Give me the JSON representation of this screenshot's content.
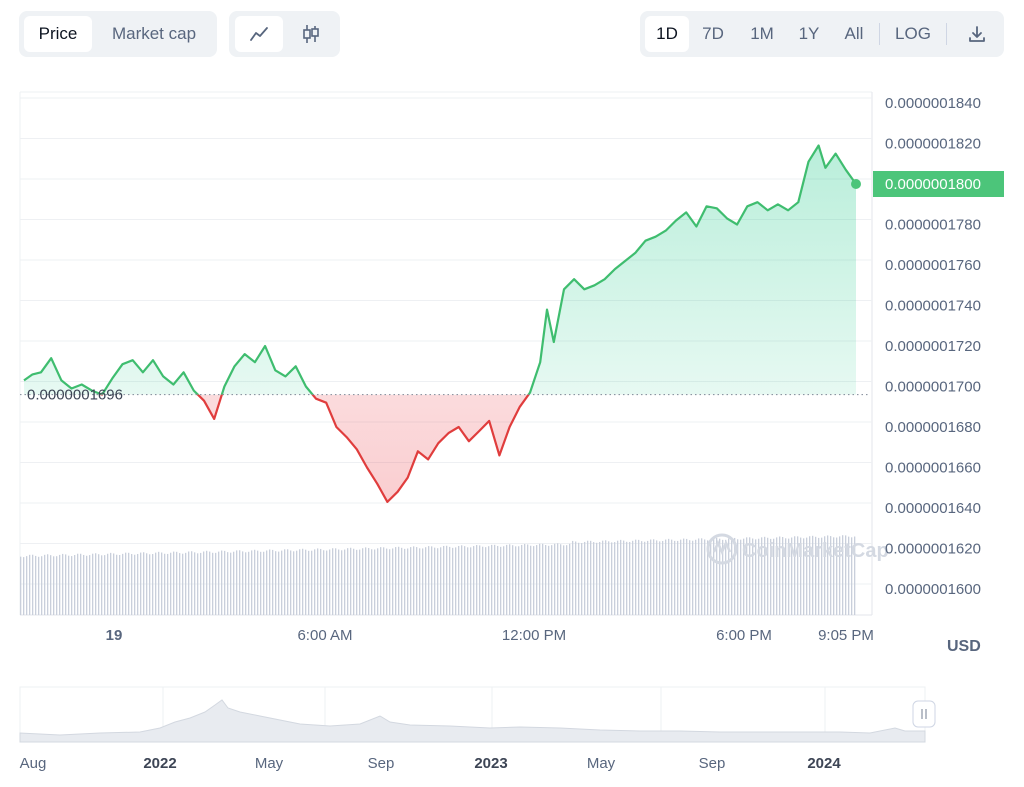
{
  "toolbar": {
    "metric_tabs": [
      {
        "label": "Price",
        "active": true
      },
      {
        "label": "Market cap",
        "active": false
      }
    ],
    "chart_types": [
      {
        "icon": "line-chart-icon",
        "active": true
      },
      {
        "icon": "candlestick-chart-icon",
        "active": false
      }
    ],
    "ranges": [
      {
        "label": "1D",
        "active": true
      },
      {
        "label": "7D",
        "active": false
      },
      {
        "label": "1M",
        "active": false
      },
      {
        "label": "1Y",
        "active": false
      },
      {
        "label": "All",
        "active": false
      }
    ],
    "log_label": "LOG",
    "download_icon": "download-icon"
  },
  "currency_label": "USD",
  "watermark": "CoinMarketCap",
  "colors": {
    "up": "#16c784",
    "down": "#ea3943",
    "line_up": "#3fbd6f",
    "line_down": "#e03d3d",
    "current_badge": "#4cc57a"
  },
  "chart_data": {
    "type": "line",
    "y_ticks": [
      "0.0000001840",
      "0.0000001820",
      "0.0000001800",
      "0.0000001780",
      "0.0000001760",
      "0.0000001740",
      "0.0000001720",
      "0.0000001700",
      "0.0000001680",
      "0.0000001660",
      "0.0000001640",
      "0.0000001620",
      "0.0000001600"
    ],
    "ylim": [
      1.59e-07,
      1.845e-07
    ],
    "x_ticks": [
      "19",
      "6:00 AM",
      "12:00 PM",
      "6:00 PM",
      "9:05 PM"
    ],
    "reference_price": 1.696e-07,
    "reference_label": "0.0000001696",
    "current_price_label": "0.0000001800",
    "price_points": [
      [
        0,
        1.703
      ],
      [
        0.5,
        1.706
      ],
      [
        1,
        1.707
      ],
      [
        1.6,
        1.714
      ],
      [
        2.2,
        1.703
      ],
      [
        2.8,
        1.699
      ],
      [
        3.4,
        1.701
      ],
      [
        4,
        1.698
      ],
      [
        4.6,
        1.696
      ],
      [
        5.2,
        1.704
      ],
      [
        5.8,
        1.711
      ],
      [
        6.4,
        1.713
      ],
      [
        7,
        1.707
      ],
      [
        7.6,
        1.713
      ],
      [
        8.2,
        1.705
      ],
      [
        8.8,
        1.701
      ],
      [
        9.4,
        1.707
      ],
      [
        10,
        1.698
      ],
      [
        10.6,
        1.693
      ],
      [
        11.2,
        1.684
      ],
      [
        11.8,
        1.7
      ],
      [
        12.4,
        1.71
      ],
      [
        13,
        1.716
      ],
      [
        13.6,
        1.712
      ],
      [
        14.2,
        1.72
      ],
      [
        14.8,
        1.708
      ],
      [
        15.4,
        1.705
      ],
      [
        16,
        1.71
      ],
      [
        16.6,
        1.7
      ],
      [
        17.2,
        1.694
      ],
      [
        17.8,
        1.692
      ],
      [
        18.4,
        1.68
      ],
      [
        19,
        1.675
      ],
      [
        19.6,
        1.669
      ],
      [
        20.2,
        1.66
      ],
      [
        20.8,
        1.652
      ],
      [
        21.4,
        1.643
      ],
      [
        22,
        1.648
      ],
      [
        22.6,
        1.655
      ],
      [
        23.2,
        1.668
      ],
      [
        23.8,
        1.664
      ],
      [
        24.4,
        1.672
      ],
      [
        25,
        1.677
      ],
      [
        25.6,
        1.68
      ],
      [
        26.2,
        1.673
      ],
      [
        26.8,
        1.678
      ],
      [
        27.4,
        1.683
      ],
      [
        28,
        1.666
      ],
      [
        28.6,
        1.68
      ],
      [
        29.2,
        1.69
      ],
      [
        29.8,
        1.697
      ],
      [
        30.4,
        1.712
      ],
      [
        30.8,
        1.738
      ],
      [
        31.2,
        1.722
      ],
      [
        31.8,
        1.748
      ],
      [
        32.4,
        1.753
      ],
      [
        33,
        1.748
      ],
      [
        33.6,
        1.75
      ],
      [
        34.2,
        1.753
      ],
      [
        34.8,
        1.758
      ],
      [
        35.4,
        1.762
      ],
      [
        36,
        1.766
      ],
      [
        36.6,
        1.772
      ],
      [
        37.2,
        1.774
      ],
      [
        37.8,
        1.777
      ],
      [
        38.4,
        1.782
      ],
      [
        39,
        1.786
      ],
      [
        39.6,
        1.779
      ],
      [
        40.2,
        1.789
      ],
      [
        40.8,
        1.788
      ],
      [
        41.4,
        1.783
      ],
      [
        42,
        1.78
      ],
      [
        42.6,
        1.789
      ],
      [
        43.2,
        1.791
      ],
      [
        43.8,
        1.787
      ],
      [
        44.4,
        1.79
      ],
      [
        45,
        1.787
      ],
      [
        45.6,
        1.791
      ],
      [
        46.2,
        1.811
      ],
      [
        46.8,
        1.819
      ],
      [
        47.2,
        1.808
      ],
      [
        47.8,
        1.815
      ],
      [
        48.4,
        1.807
      ],
      [
        49,
        1.8
      ]
    ],
    "volume": "small rising vertical bars along the bottom of the plot",
    "navigator": {
      "x_ticks": [
        "Aug",
        "2022",
        "May",
        "Sep",
        "2023",
        "May",
        "Sep",
        "2024"
      ],
      "bold_ticks": [
        "2022",
        "2023",
        "2024"
      ]
    }
  }
}
